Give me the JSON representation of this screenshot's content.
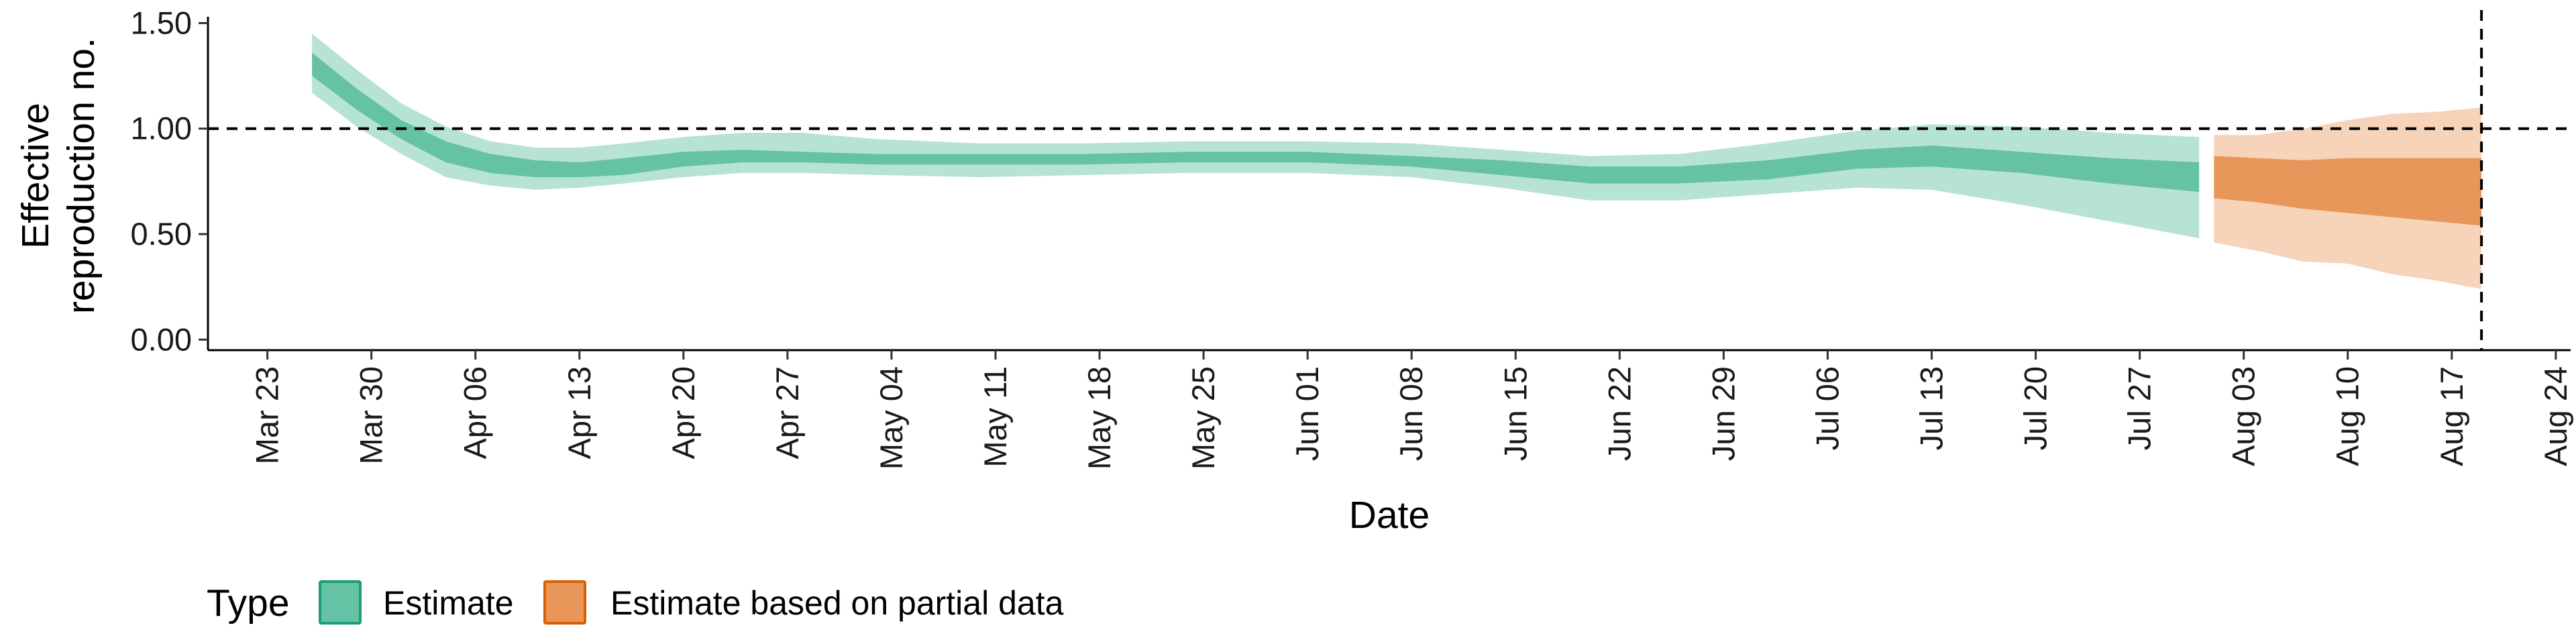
{
  "chart_data": {
    "type": "area",
    "xlabel": "Date",
    "ylabel_lines": [
      "Effective",
      "reproduction no."
    ],
    "x_domain": [
      "2020-03-19",
      "2020-08-25"
    ],
    "ylim": [
      -0.05,
      1.53
    ],
    "y_ticks": [
      0,
      0.5,
      1.0,
      1.5
    ],
    "y_tick_labels": [
      "0.00",
      "0.50",
      "1.00",
      "1.50"
    ],
    "x_ticks": [
      "2020-03-23",
      "2020-03-30",
      "2020-04-06",
      "2020-04-13",
      "2020-04-20",
      "2020-04-27",
      "2020-05-04",
      "2020-05-11",
      "2020-05-18",
      "2020-05-25",
      "2020-06-01",
      "2020-06-08",
      "2020-06-15",
      "2020-06-22",
      "2020-06-29",
      "2020-07-06",
      "2020-07-13",
      "2020-07-20",
      "2020-07-27",
      "2020-08-03",
      "2020-08-10",
      "2020-08-17",
      "2020-08-24"
    ],
    "x_tick_labels": [
      "Mar 23",
      "Mar 30",
      "Apr 06",
      "Apr 13",
      "Apr 20",
      "Apr 27",
      "May 04",
      "May 11",
      "May 18",
      "May 25",
      "Jun 01",
      "Jun 08",
      "Jun 15",
      "Jun 22",
      "Jun 29",
      "Jul 06",
      "Jul 13",
      "Jul 20",
      "Jul 27",
      "Aug 03",
      "Aug 10",
      "Aug 17",
      "Aug 24"
    ],
    "reference_lines": {
      "horizontal_y": 1.0,
      "vertical_x": "2020-08-19",
      "style": "dashed"
    },
    "grid": false,
    "legend": {
      "title": "Type",
      "position": "bottom-left",
      "items": [
        {
          "label": "Estimate",
          "fill": "#66c2a5",
          "stroke": "#1b9e77"
        },
        {
          "label": "Estimate based on partial data",
          "fill": "#e8965a",
          "stroke": "#d95f02"
        }
      ]
    },
    "series": [
      {
        "name": "Estimate",
        "fill_inner": "#66c2a5",
        "fill_outer": "#b7e3d2",
        "x": [
          "2020-03-26",
          "2020-03-29",
          "2020-04-01",
          "2020-04-04",
          "2020-04-07",
          "2020-04-10",
          "2020-04-13",
          "2020-04-16",
          "2020-04-20",
          "2020-04-24",
          "2020-04-28",
          "2020-05-03",
          "2020-05-10",
          "2020-05-17",
          "2020-05-24",
          "2020-06-01",
          "2020-06-08",
          "2020-06-14",
          "2020-06-20",
          "2020-06-26",
          "2020-07-02",
          "2020-07-08",
          "2020-07-13",
          "2020-07-19",
          "2020-07-25",
          "2020-07-31"
        ],
        "median": [
          1.3,
          1.14,
          1.0,
          0.89,
          0.84,
          0.81,
          0.81,
          0.82,
          0.85,
          0.87,
          0.87,
          0.86,
          0.85,
          0.86,
          0.86,
          0.86,
          0.85,
          0.82,
          0.79,
          0.78,
          0.8,
          0.85,
          0.87,
          0.85,
          0.82,
          0.79
        ],
        "lower_50": [
          1.25,
          1.09,
          0.95,
          0.84,
          0.79,
          0.77,
          0.77,
          0.78,
          0.82,
          0.84,
          0.84,
          0.83,
          0.83,
          0.83,
          0.84,
          0.84,
          0.82,
          0.78,
          0.74,
          0.74,
          0.76,
          0.81,
          0.82,
          0.79,
          0.74,
          0.7
        ],
        "upper_50": [
          1.36,
          1.19,
          1.04,
          0.94,
          0.88,
          0.85,
          0.84,
          0.86,
          0.89,
          0.9,
          0.89,
          0.88,
          0.88,
          0.88,
          0.89,
          0.89,
          0.87,
          0.85,
          0.82,
          0.82,
          0.85,
          0.9,
          0.92,
          0.89,
          0.86,
          0.84
        ],
        "lower_90": [
          1.17,
          1.01,
          0.88,
          0.77,
          0.73,
          0.71,
          0.72,
          0.74,
          0.77,
          0.79,
          0.79,
          0.78,
          0.77,
          0.78,
          0.79,
          0.79,
          0.77,
          0.72,
          0.66,
          0.66,
          0.69,
          0.72,
          0.71,
          0.64,
          0.56,
          0.48
        ],
        "upper_90": [
          1.45,
          1.28,
          1.12,
          1.01,
          0.94,
          0.91,
          0.91,
          0.93,
          0.96,
          0.98,
          0.98,
          0.95,
          0.93,
          0.93,
          0.94,
          0.94,
          0.93,
          0.9,
          0.87,
          0.88,
          0.93,
          0.99,
          1.02,
          1.01,
          0.98,
          0.96
        ]
      },
      {
        "name": "Estimate based on partial data",
        "fill_inner": "#e8965a",
        "fill_outer": "#f6d3b9",
        "x": [
          "2020-08-01",
          "2020-08-04",
          "2020-08-07",
          "2020-08-10",
          "2020-08-13",
          "2020-08-16",
          "2020-08-19"
        ],
        "median": [
          0.77,
          0.75,
          0.73,
          0.74,
          0.72,
          0.71,
          0.7
        ],
        "lower_50": [
          0.67,
          0.65,
          0.62,
          0.6,
          0.58,
          0.56,
          0.54
        ],
        "upper_50": [
          0.87,
          0.86,
          0.85,
          0.86,
          0.86,
          0.86,
          0.86
        ],
        "lower_90": [
          0.46,
          0.42,
          0.37,
          0.36,
          0.31,
          0.28,
          0.24
        ],
        "upper_90": [
          0.97,
          0.97,
          1.0,
          1.04,
          1.07,
          1.08,
          1.1
        ]
      }
    ]
  }
}
